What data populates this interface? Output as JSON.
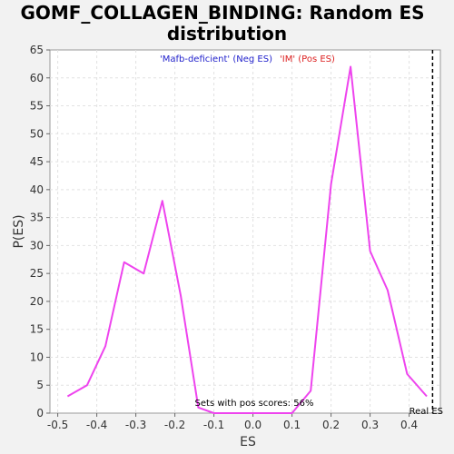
{
  "chart_data": {
    "type": "line",
    "title_lines": [
      "GOMF_COLLAGEN_BINDING: Random ES",
      "distribution"
    ],
    "xlabel": "ES",
    "ylabel": "P(ES)",
    "xlim": [
      -0.52,
      0.48
    ],
    "ylim": [
      0,
      65
    ],
    "xticks": [
      -0.5,
      -0.4,
      -0.3,
      -0.2,
      -0.1,
      0.0,
      0.1,
      0.2,
      0.3,
      0.4
    ],
    "xtick_labels": [
      "-0.5",
      "-0.4",
      "-0.3",
      "-0.2",
      "-0.1",
      "0.0",
      "0.1",
      "0.2",
      "0.3",
      "0.4"
    ],
    "yticks": [
      0,
      5,
      10,
      15,
      20,
      25,
      30,
      35,
      40,
      45,
      50,
      55,
      60,
      65
    ],
    "ytick_labels": [
      "0",
      "5",
      "10",
      "15",
      "20",
      "25",
      "30",
      "35",
      "40",
      "45",
      "50",
      "55",
      "60",
      "65"
    ],
    "grid": true,
    "legend": {
      "placement": "top-center",
      "neg_label": "'Mafb-deficient' (Neg ES)",
      "pos_label": "'IM' (Pos ES)",
      "neg_color": "#2222cc",
      "pos_color": "#dd2222"
    },
    "series": [
      {
        "color": "#ee44ee",
        "x": [
          -0.475,
          -0.425,
          -0.378,
          -0.33,
          -0.28,
          -0.232,
          -0.185,
          -0.14,
          -0.1,
          -0.05,
          0.0,
          0.05,
          0.1,
          0.148,
          0.2,
          0.25,
          0.3,
          0.345,
          0.395,
          0.445
        ],
        "y": [
          3,
          5,
          12,
          27,
          25,
          38,
          21,
          1,
          0,
          0,
          0,
          0,
          0,
          4,
          41,
          62,
          29,
          22,
          7,
          3
        ]
      }
    ],
    "real_es": {
      "x": 0.46,
      "label": "Real ES"
    },
    "annotation": "Sets with pos scores: 56%"
  }
}
